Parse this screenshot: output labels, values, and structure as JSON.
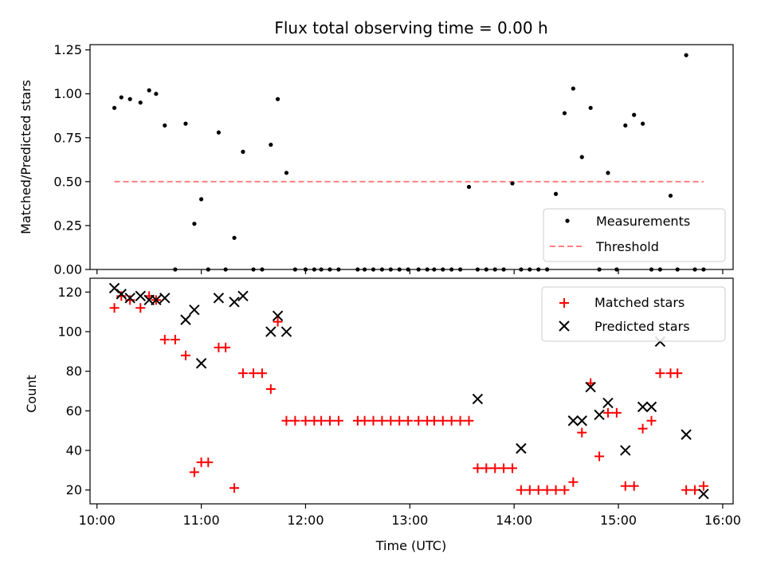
{
  "chart_data": [
    {
      "type": "scatter",
      "title": "Flux total observing time = 0.00 h",
      "ylabel": "Matched/Predicted stars",
      "xlim": [
        "09:56",
        "16:06"
      ],
      "ylim": [
        0,
        1.28
      ],
      "yticks": [
        "0.00",
        "0.25",
        "0.50",
        "0.75",
        "1.00",
        "1.25"
      ],
      "ytick_values": [
        0,
        0.25,
        0.5,
        0.75,
        1.0,
        1.25
      ],
      "legend_position": "bottom-right",
      "series": [
        {
          "name": "Measurements",
          "marker": "dot",
          "color": "#000000",
          "x": [
            "10:10",
            "10:14",
            "10:19",
            "10:25",
            "10:30",
            "10:34",
            "10:39",
            "10:45",
            "10:51",
            "10:56",
            "11:00",
            "11:04",
            "11:10",
            "11:14",
            "11:19",
            "11:24",
            "11:30",
            "11:35",
            "11:40",
            "11:44",
            "11:49",
            "11:54",
            "12:00",
            "12:05",
            "12:09",
            "12:14",
            "12:19",
            "12:30",
            "12:34",
            "12:39",
            "12:44",
            "12:49",
            "12:54",
            "12:59",
            "13:05",
            "13:10",
            "13:14",
            "13:19",
            "13:24",
            "13:29",
            "13:34",
            "13:39",
            "13:44",
            "13:49",
            "13:54",
            "13:59",
            "14:04",
            "14:09",
            "14:14",
            "14:19",
            "14:24",
            "14:29",
            "14:34",
            "14:39",
            "14:44",
            "14:49",
            "14:54",
            "14:59",
            "15:04",
            "15:09",
            "15:14",
            "15:19",
            "15:24",
            "15:30",
            "15:34",
            "15:39",
            "15:44",
            "15:49"
          ],
          "y": [
            0.92,
            0.98,
            0.97,
            0.95,
            1.02,
            1.0,
            0.82,
            0.0,
            0.83,
            0.26,
            0.4,
            0.0,
            0.78,
            0.0,
            0.18,
            0.67,
            0.0,
            0.0,
            0.71,
            0.97,
            0.55,
            0.0,
            0.0,
            0.0,
            0.0,
            0.0,
            0.0,
            0.0,
            0.0,
            0.0,
            0.0,
            0.0,
            0.0,
            0.0,
            0.0,
            0.0,
            0.0,
            0.0,
            0.0,
            0.0,
            0.47,
            0.0,
            0.0,
            0.0,
            0.0,
            0.49,
            0.0,
            0.0,
            0.0,
            0.0,
            0.43,
            0.89,
            1.03,
            0.64,
            0.92,
            0.0,
            0.55,
            0.0,
            0.82,
            0.88,
            0.83,
            0.0,
            0.0,
            0.42,
            0.0,
            1.22,
            0.0,
            0.0
          ]
        },
        {
          "name": "Threshold",
          "marker": "dashed-line",
          "color": "#ff8080",
          "x": [
            "10:10",
            "15:49"
          ],
          "y": [
            0.5,
            0.5
          ]
        }
      ]
    },
    {
      "type": "scatter",
      "xlabel": "Time (UTC)",
      "ylabel": "Count",
      "xlim": [
        "09:56",
        "16:06"
      ],
      "ylim": [
        13,
        127
      ],
      "xticks": [
        "10:00",
        "11:00",
        "12:00",
        "13:00",
        "14:00",
        "15:00",
        "16:00"
      ],
      "yticks": [
        "20",
        "40",
        "60",
        "80",
        "100",
        "120"
      ],
      "ytick_values": [
        20,
        40,
        60,
        80,
        100,
        120
      ],
      "legend_position": "top-right",
      "series": [
        {
          "name": "Matched stars",
          "marker": "plus",
          "color": "#ff0000",
          "x": [
            "10:10",
            "10:14",
            "10:19",
            "10:25",
            "10:30",
            "10:34",
            "10:39",
            "10:45",
            "10:51",
            "10:56",
            "11:00",
            "11:04",
            "11:10",
            "11:14",
            "11:19",
            "11:24",
            "11:30",
            "11:35",
            "11:40",
            "11:44",
            "11:49",
            "11:54",
            "12:00",
            "12:05",
            "12:09",
            "12:14",
            "12:19",
            "12:30",
            "12:34",
            "12:39",
            "12:44",
            "12:49",
            "12:54",
            "12:59",
            "13:05",
            "13:10",
            "13:14",
            "13:19",
            "13:24",
            "13:29",
            "13:34",
            "13:39",
            "13:44",
            "13:49",
            "13:54",
            "13:59",
            "14:04",
            "14:09",
            "14:14",
            "14:19",
            "14:24",
            "14:29",
            "14:34",
            "14:39",
            "14:44",
            "14:49",
            "14:54",
            "14:59",
            "15:04",
            "15:09",
            "15:14",
            "15:19",
            "15:24",
            "15:30",
            "15:34",
            "15:39",
            "15:44",
            "15:49"
          ],
          "y": [
            112,
            118,
            116,
            112,
            118,
            116,
            96,
            96,
            88,
            29,
            34,
            34,
            92,
            92,
            21,
            79,
            79,
            79,
            71,
            105,
            55,
            55,
            55,
            55,
            55,
            55,
            55,
            55,
            55,
            55,
            55,
            55,
            55,
            55,
            55,
            55,
            55,
            55,
            55,
            55,
            55,
            31,
            31,
            31,
            31,
            31,
            20,
            20,
            20,
            20,
            20,
            20,
            24,
            49,
            74,
            37,
            59,
            59,
            22,
            22,
            51,
            55,
            79,
            79,
            79,
            20,
            20,
            22
          ]
        },
        {
          "name": "Predicted stars",
          "marker": "x",
          "color": "#000000",
          "x": [
            "10:10",
            "10:14",
            "10:19",
            "10:25",
            "10:30",
            "10:34",
            "10:39",
            "10:51",
            "10:56",
            "11:00",
            "11:10",
            "11:19",
            "11:24",
            "11:40",
            "11:44",
            "11:49",
            "13:39",
            "14:04",
            "14:34",
            "14:39",
            "14:44",
            "14:49",
            "14:54",
            "15:04",
            "15:14",
            "15:19",
            "15:24",
            "15:39",
            "15:49"
          ],
          "y": [
            122,
            119,
            117,
            118,
            116,
            116,
            117,
            106,
            111,
            84,
            117,
            115,
            118,
            100,
            108,
            100,
            66,
            41,
            55,
            55,
            72,
            58,
            64,
            40,
            62,
            62,
            95,
            48,
            18
          ]
        }
      ]
    }
  ]
}
